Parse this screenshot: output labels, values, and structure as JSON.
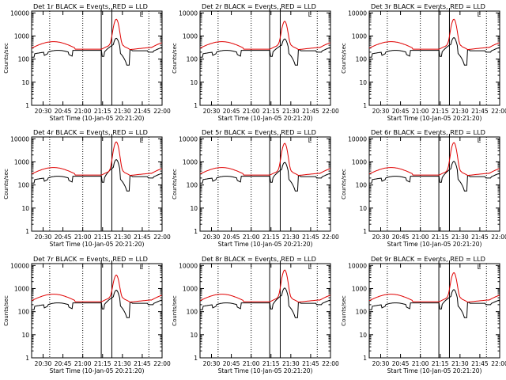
{
  "colors": {
    "events": "#000000",
    "lld": "#e00000",
    "axis": "#000000",
    "background": "#ffffff"
  },
  "common": {
    "ylabel": "Counts/sec",
    "xlabel": "Start Time (10-Jan-05 20:21:20)",
    "x_ticks": [
      "20:30",
      "20:45",
      "21:00",
      "21:15",
      "21:30",
      "21:45",
      "22:00"
    ],
    "y_ticks": [
      "1",
      "10",
      "100",
      "1000",
      "10000"
    ],
    "marker_label": "L"
  },
  "chart_data": [
    {
      "type": "line",
      "title": "Det 1r BLACK = Events, RED = LLD",
      "xlabel": "Start Time (10-Jan-05 20:21:20)",
      "ylabel": "Counts/sec",
      "y_scale": "log",
      "ylim": [
        1,
        12000
      ],
      "x": [
        "20:21:20",
        "22:00"
      ],
      "series": [
        {
          "name": "Events",
          "color": "#000000",
          "values_ref": "events",
          "peak": 650
        },
        {
          "name": "LLD",
          "color": "#e00000",
          "values_ref": "lld",
          "peak": 5000
        }
      ]
    },
    {
      "type": "line",
      "title": "Det 2r BLACK = Events, RED = LLD",
      "xlabel": "Start Time (10-Jan-05 20:21:20)",
      "ylabel": "Counts/sec",
      "y_scale": "log",
      "ylim": [
        1,
        12000
      ],
      "series": [
        {
          "name": "Events",
          "color": "#000000",
          "peak": 600
        },
        {
          "name": "LLD",
          "color": "#e00000",
          "peak": 4000
        }
      ]
    },
    {
      "type": "line",
      "title": "Det 3r BLACK = Events, RED = LLD",
      "xlabel": "Start Time (10-Jan-05 20:21:20)",
      "ylabel": "Counts/sec",
      "y_scale": "log",
      "ylim": [
        1,
        12000
      ],
      "series": [
        {
          "name": "Events",
          "color": "#000000",
          "peak": 700
        },
        {
          "name": "LLD",
          "color": "#e00000",
          "peak": 5000
        }
      ]
    },
    {
      "type": "line",
      "title": "Det 4r BLACK = Events, RED = LLD",
      "xlabel": "Start Time (10-Jan-05 20:21:20)",
      "ylabel": "Counts/sec",
      "y_scale": "log",
      "ylim": [
        1,
        12000
      ],
      "series": [
        {
          "name": "Events",
          "color": "#000000",
          "peak": 1100
        },
        {
          "name": "LLD",
          "color": "#e00000",
          "peak": 7000
        }
      ]
    },
    {
      "type": "line",
      "title": "Det 5r BLACK = Events, RED = LLD",
      "xlabel": "Start Time (10-Jan-05 20:21:20)",
      "ylabel": "Counts/sec",
      "y_scale": "log",
      "ylim": [
        1,
        12000
      ],
      "series": [
        {
          "name": "Events",
          "color": "#000000",
          "peak": 800
        },
        {
          "name": "LLD",
          "color": "#e00000",
          "peak": 6000
        }
      ]
    },
    {
      "type": "line",
      "title": "Det 6r BLACK = Events, RED = LLD",
      "xlabel": "Start Time (10-Jan-05 20:21:20)",
      "ylabel": "Counts/sec",
      "y_scale": "log",
      "ylim": [
        1,
        12000
      ],
      "series": [
        {
          "name": "Events",
          "color": "#000000",
          "peak": 900
        },
        {
          "name": "LLD",
          "color": "#e00000",
          "peak": 6500
        }
      ]
    },
    {
      "type": "line",
      "title": "Det 7r BLACK = Events, RED = LLD",
      "xlabel": "Start Time (10-Jan-05 20:21:20)",
      "ylabel": "Counts/sec",
      "y_scale": "log",
      "ylim": [
        1,
        12000
      ],
      "series": [
        {
          "name": "Events",
          "color": "#000000",
          "peak": 700
        },
        {
          "name": "LLD",
          "color": "#e00000",
          "peak": 3500
        }
      ]
    },
    {
      "type": "line",
      "title": "Det 8r BLACK = Events, RED = LLD",
      "xlabel": "Start Time (10-Jan-05 20:21:20)",
      "ylabel": "Counts/sec",
      "y_scale": "log",
      "ylim": [
        1,
        12000
      ],
      "series": [
        {
          "name": "Events",
          "color": "#000000",
          "peak": 900
        },
        {
          "name": "LLD",
          "color": "#e00000",
          "peak": 6000
        }
      ]
    },
    {
      "type": "line",
      "title": "Det 9r BLACK = Events, RED = LLD",
      "xlabel": "Start Time (10-Jan-05 20:21:20)",
      "ylabel": "Counts/sec",
      "y_scale": "log",
      "ylim": [
        1,
        12000
      ],
      "series": [
        {
          "name": "Events",
          "color": "#000000",
          "peak": 750
        },
        {
          "name": "LLD",
          "color": "#e00000",
          "peak": 4500
        }
      ]
    }
  ],
  "time_axis": {
    "start": "20:21:20",
    "end": "22:00",
    "dotted_markers": [
      "20:35",
      "21:00",
      "21:50"
    ],
    "solid_markers": [
      "21:14",
      "21:22"
    ],
    "marker_L_at": "21:43"
  },
  "profile": {
    "x_min": [
      8,
      12,
      16,
      20,
      24,
      28,
      32,
      36,
      40,
      44,
      48,
      52,
      56,
      60,
      64,
      68,
      72,
      76,
      80,
      84,
      88,
      92,
      96
    ],
    "lld_base": [
      300,
      340,
      380,
      430,
      480,
      520,
      540,
      520,
      470,
      400,
      330,
      280,
      270,
      270,
      270,
      270,
      280,
      300,
      330
    ],
    "events_base": [
      170,
      190,
      210,
      220,
      220,
      210,
      190,
      160,
      150,
      240,
      240,
      240,
      240,
      240,
      240
    ]
  }
}
